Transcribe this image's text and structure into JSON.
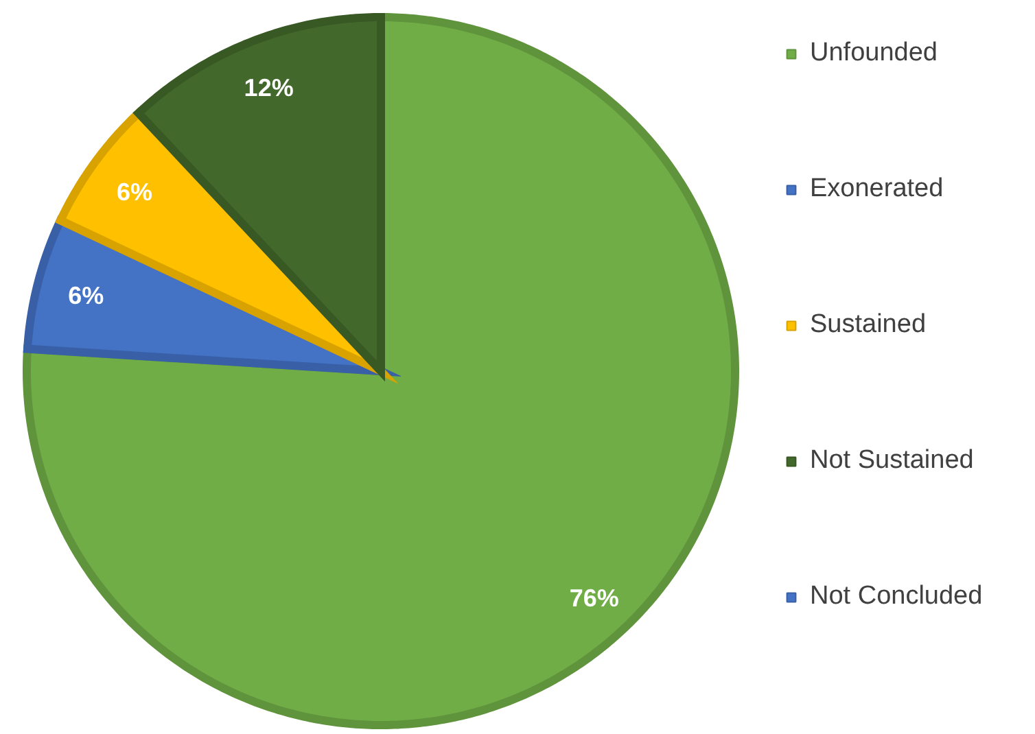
{
  "chart_data": {
    "type": "pie",
    "categories": [
      "Unfounded",
      "Exonerated",
      "Sustained",
      "Not Sustained",
      "Not Concluded"
    ],
    "values": [
      76,
      6,
      6,
      12,
      0
    ],
    "colors": [
      "#70ad47",
      "#4472c4",
      "#ffc000",
      "#43682b",
      "#4472c4"
    ],
    "value_labels": [
      "76%",
      "6%",
      "6%",
      "12%",
      null
    ],
    "legend": "right"
  }
}
